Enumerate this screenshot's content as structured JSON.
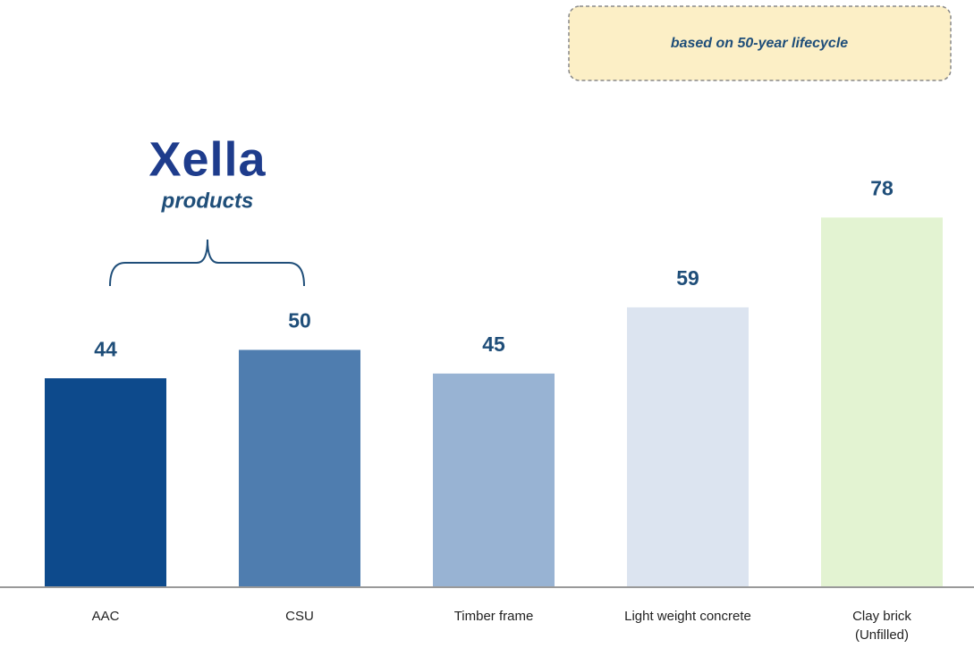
{
  "chart_data": {
    "type": "bar",
    "annotation": "based on 50-year lifecycle",
    "logo": "Xella",
    "logo_caption": "products",
    "categories": [
      "AAC",
      "CSU",
      "Timber frame",
      "Light weight concrete",
      "Clay brick\n(Unfilled)"
    ],
    "values": [
      44,
      50,
      45,
      59,
      78
    ],
    "colors": [
      "#0d4a8c",
      "#4f7daf",
      "#98b3d3",
      "#dce4f0",
      "#e3f3d2"
    ],
    "ylim": [
      0,
      124
    ]
  }
}
